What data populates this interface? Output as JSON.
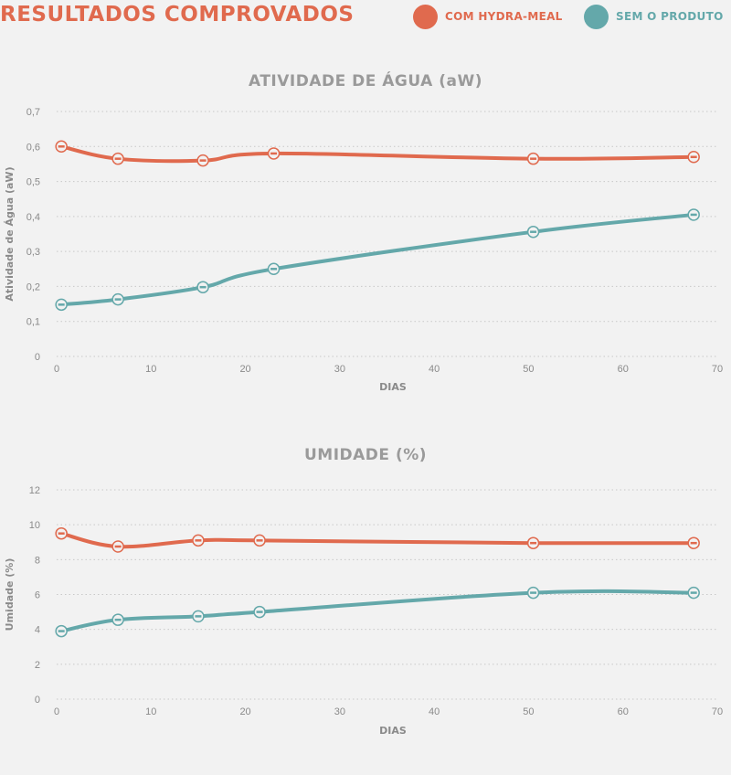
{
  "header": {
    "title": "RESULTADOS COMPROVADOS",
    "legend": [
      {
        "label": "COM HYDRA-MEAL",
        "color": "#e06a4e"
      },
      {
        "label": "SEM O PRODUTO",
        "color": "#64a8aa"
      }
    ]
  },
  "chart_data": [
    {
      "type": "line",
      "title": "ATIVIDADE DE ÁGUA (aW)",
      "xlabel": "DIAS",
      "ylabel": "Atividade de Água (aW)",
      "xlim": [
        0,
        70
      ],
      "ylim": [
        0,
        0.7
      ],
      "x_ticks": [
        0,
        10,
        20,
        30,
        40,
        50,
        60,
        70
      ],
      "x_tick_labels": [
        "0",
        "10",
        "20",
        "30",
        "40",
        "50",
        "60",
        "70"
      ],
      "y_ticks": [
        0,
        0.1,
        0.2,
        0.3,
        0.4,
        0.5,
        0.6,
        0.7
      ],
      "y_tick_labels": [
        "0",
        "0,1",
        "0,2",
        "0,3",
        "0,4",
        "0,5",
        "0,6",
        "0,7"
      ],
      "grid": true,
      "series": [
        {
          "name": "COM HYDRA-MEAL",
          "color": "#e06a4e",
          "x": [
            0.5,
            6.5,
            15.5,
            23,
            50.5,
            67.5
          ],
          "y": [
            0.6,
            0.565,
            0.56,
            0.58,
            0.565,
            0.57
          ]
        },
        {
          "name": "SEM O PRODUTO",
          "color": "#64a8aa",
          "x": [
            0.5,
            6.5,
            15.5,
            23,
            50.5,
            67.5
          ],
          "y": [
            0.148,
            0.163,
            0.198,
            0.25,
            0.356,
            0.405
          ]
        }
      ]
    },
    {
      "type": "line",
      "title": "UMIDADE (%)",
      "xlabel": "DIAS",
      "ylabel": "Umidade (%)",
      "xlim": [
        0,
        70
      ],
      "ylim": [
        0,
        12
      ],
      "x_ticks": [
        0,
        10,
        20,
        30,
        40,
        50,
        60,
        70
      ],
      "x_tick_labels": [
        "0",
        "10",
        "20",
        "30",
        "40",
        "50",
        "60",
        "70"
      ],
      "y_ticks": [
        0,
        2,
        4,
        6,
        8,
        10,
        12
      ],
      "y_tick_labels": [
        "0",
        "2",
        "4",
        "6",
        "8",
        "10",
        "12"
      ],
      "grid": true,
      "series": [
        {
          "name": "COM HYDRA-MEAL",
          "color": "#e06a4e",
          "x": [
            0.5,
            6.5,
            15,
            21.5,
            50.5,
            67.5
          ],
          "y": [
            9.5,
            8.75,
            9.1,
            9.1,
            8.95,
            8.95
          ]
        },
        {
          "name": "SEM O PRODUTO",
          "color": "#64a8aa",
          "x": [
            0.5,
            6.5,
            15,
            21.5,
            50.5,
            67.5
          ],
          "y": [
            3.9,
            4.55,
            4.75,
            5.0,
            6.1,
            6.1
          ]
        }
      ]
    }
  ]
}
